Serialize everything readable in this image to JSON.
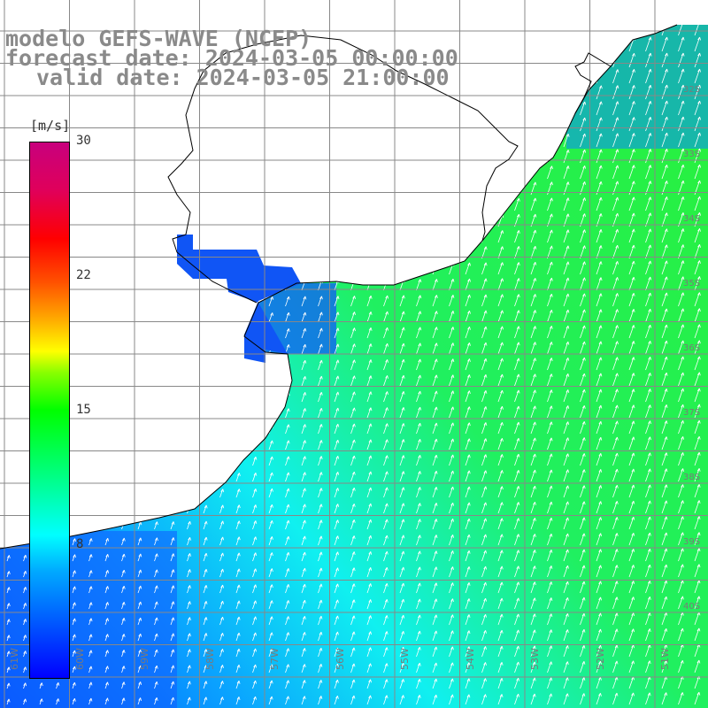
{
  "title": {
    "line1": "modelo GEFS-WAVE (NCEP)",
    "line2": "forecast date: 2024-03-05 00:00:00",
    "line3": "valid date: 2024-03-05 21:00:00"
  },
  "colorbar": {
    "unit": "[m/s]",
    "min": 0,
    "max": 30,
    "ticks": [
      "30",
      "22",
      "15",
      "8"
    ],
    "colors": [
      "#0000ff",
      "#00ffff",
      "#00ff00",
      "#ffff00",
      "#ff0000",
      "#c8007d"
    ]
  },
  "map": {
    "lon_labels": [
      "61W",
      "60W",
      "59W",
      "58W",
      "57W",
      "56W",
      "55W",
      "54W",
      "53W",
      "52W",
      "51W"
    ],
    "lat_labels": [
      "32S",
      "33S",
      "34S",
      "35S",
      "36S",
      "37S",
      "38S",
      "39S",
      "40S"
    ],
    "land_color": "#ffffff",
    "coast_color": "#000000",
    "grid_color": "#888888"
  }
}
